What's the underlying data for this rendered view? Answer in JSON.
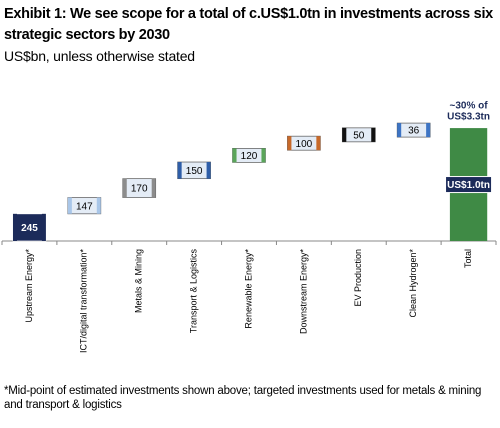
{
  "chart_data": {
    "type": "waterfall",
    "title": "Exhibit 1: We see scope for a total of c.US$1.0tn in investments across six strategic sectors by 2030",
    "subtitle": "US$bn, unless otherwise stated",
    "categories": [
      "Upstream Energy*",
      "ICT/digital transformation*",
      "Metals & Mining",
      "Transport & Logistics",
      "Renewable Energy*",
      "Downstream Energy*",
      "EV Production",
      "Clean Hydrogen*",
      "Total"
    ],
    "values": [
      245,
      147,
      170,
      150,
      120,
      100,
      50,
      36,
      1018
    ],
    "value_labels": [
      "245",
      "147",
      "170",
      "150",
      "120",
      "100",
      "50",
      "36",
      "US$1.0tn"
    ],
    "measures": [
      "relative",
      "relative",
      "relative",
      "relative",
      "relative",
      "relative",
      "relative",
      "relative",
      "total"
    ],
    "colors": [
      "#1c2b5a",
      "#a9c6e8",
      "#8c8c8c",
      "#2f5ea8",
      "#5aa55a",
      "#c86a2a",
      "#111111",
      "#3d74c4",
      "#3f8a45"
    ],
    "annotation": [
      "~30% of",
      "US$3.3tn"
    ],
    "ylim": [
      0,
      1100
    ],
    "footnote": "*Mid-point of estimated investments shown above; targeted investments used for metals & mining and transport & logistics"
  }
}
